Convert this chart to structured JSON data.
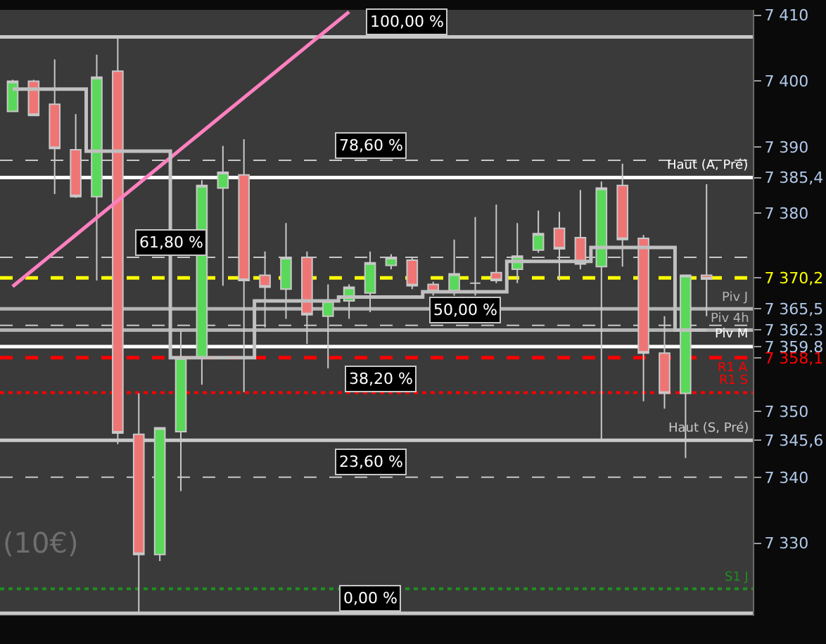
{
  "chart_data": {
    "type": "candlestick",
    "categories": [
      null,
      null,
      null,
      null,
      null,
      null,
      null,
      null,
      null,
      null,
      null,
      null,
      null,
      null,
      null,
      null,
      null,
      null,
      null,
      null,
      null,
      null,
      null,
      null,
      null,
      null,
      null,
      null,
      null,
      null,
      null,
      null,
      null,
      null
    ],
    "ohlc": [
      [
        7395.4,
        7400.2,
        7395.4,
        7400.0
      ],
      [
        7400.0,
        7400.2,
        7394.8,
        7394.8
      ],
      [
        7396.5,
        7403.3,
        7382.9,
        7389.8
      ],
      [
        7389.6,
        7395.0,
        7382.3,
        7382.5
      ],
      [
        7382.5,
        7404.0,
        7369.8,
        7400.6
      ],
      [
        7401.5,
        7406.7,
        7345.0,
        7346.7
      ],
      [
        7346.5,
        7352.7,
        7319.4,
        7328.3
      ],
      [
        7328.3,
        7347.5,
        7327.3,
        7347.5
      ],
      [
        7346.9,
        7362.1,
        7337.9,
        7358.1
      ],
      [
        7358.1,
        7385.0,
        7354.0,
        7384.2
      ],
      [
        7383.8,
        7390.2,
        7369.0,
        7386.2
      ],
      [
        7385.8,
        7391.2,
        7352.9,
        7369.8
      ],
      [
        7370.6,
        7374.2,
        7362.7,
        7368.8
      ],
      [
        7368.5,
        7378.5,
        7364.0,
        7373.3
      ],
      [
        7373.3,
        7374.2,
        7360.2,
        7364.6
      ],
      [
        7364.4,
        7369.2,
        7356.5,
        7366.7
      ],
      [
        7366.7,
        7369.2,
        7364.0,
        7368.8
      ],
      [
        7367.9,
        7374.2,
        7365.0,
        7372.5
      ],
      [
        7372.1,
        7373.8,
        7371.5,
        7373.3
      ],
      [
        7372.9,
        7373.3,
        7368.5,
        7369.0
      ],
      [
        7369.2,
        7369.6,
        7367.5,
        7368.1
      ],
      [
        7368.3,
        7376.0,
        7367.5,
        7370.8
      ],
      [
        7369.4,
        7379.4,
        7367.5,
        7369.4
      ],
      [
        7371.0,
        7381.3,
        7369.4,
        7369.8
      ],
      [
        7371.5,
        7378.5,
        7369.4,
        7373.5
      ],
      [
        7374.4,
        7380.4,
        7374.0,
        7376.9
      ],
      [
        7377.7,
        7380.2,
        7369.8,
        7374.6
      ],
      [
        7376.3,
        7383.5,
        7371.5,
        7372.3
      ],
      [
        7371.9,
        7384.8,
        7345.8,
        7383.8
      ],
      [
        7384.2,
        7387.5,
        7371.9,
        7376.0
      ],
      [
        7376.2,
        7376.7,
        7351.5,
        7358.8
      ],
      [
        7358.8,
        7364.4,
        7350.4,
        7352.7
      ],
      [
        7352.7,
        7370.6,
        7342.9,
        7370.6
      ],
      [
        7370.6,
        7384.4,
        7364.4,
        7370.0
      ]
    ],
    "colors": [
      "#5ad85a",
      "#ef7575",
      "#ef7575",
      "#ef7575",
      "#5ad85a",
      "#ef7575",
      "#ef7575",
      "#5ad85a",
      "#5ad85a",
      "#5ad85a",
      "#5ad85a",
      "#ef7575",
      "#ef7575",
      "#5ad85a",
      "#ef7575",
      "#5ad85a",
      "#5ad85a",
      "#5ad85a",
      "#5ad85a",
      "#ef7575",
      "#ef7575",
      "#5ad85a",
      "#c8c8c8",
      "#ef7575",
      "#5ad85a",
      "#5ad85a",
      "#ef7575",
      "#ef7575",
      "#5ad85a",
      "#ef7575",
      "#ef7575",
      "#ef7575",
      "#5ad85a",
      "#ef7575"
    ],
    "series": [
      {
        "type": "line",
        "color": "#ff80c0",
        "values": [
          7368.9,
          7371.5,
          7374.1,
          7376.7,
          7379.3,
          7381.9,
          7384.5,
          7387.1,
          7389.7,
          7392.3,
          7394.9,
          7397.5,
          7400.1,
          7402.7,
          7405.3,
          7407.9,
          7410.5,
          null,
          null,
          null,
          null,
          null,
          null,
          null,
          null,
          null,
          null,
          null,
          null,
          null,
          null,
          null,
          null,
          null
        ]
      },
      {
        "type": "step",
        "color": "#c0c0c0",
        "values": [
          7398.8,
          7398.8,
          7398.8,
          7398.8,
          7389.4,
          7389.4,
          7389.4,
          7389.4,
          7358.1,
          7358.1,
          7358.1,
          7358.1,
          7366.7,
          7366.7,
          7366.7,
          7366.7,
          7367.3,
          7367.3,
          7367.3,
          7367.3,
          7368.1,
          7368.1,
          7368.1,
          7368.1,
          7372.7,
          7372.7,
          7372.7,
          7372.7,
          7374.8,
          7374.8,
          7374.8,
          7374.8,
          7362.3,
          7362.3
        ]
      }
    ],
    "ylim": [
      7319.0,
      7410.8
    ],
    "yticks": [
      {
        "value": 7410,
        "label": "7 410"
      },
      {
        "value": 7400,
        "label": "7 400"
      },
      {
        "value": 7390,
        "label": "7 390"
      },
      {
        "value": 7385.4,
        "label": "7 385,4"
      },
      {
        "value": 7380,
        "label": "7 380"
      },
      {
        "value": 7370.2,
        "label": "7 370,2"
      },
      {
        "value": 7365.5,
        "label": "7 365,5"
      },
      {
        "value": 7362.3,
        "label": "7 362.3"
      },
      {
        "value": 7359.8,
        "label": "7 359.8"
      },
      {
        "value": 7358.1,
        "label": "7 358,1"
      },
      {
        "value": 7350,
        "label": "7 350"
      },
      {
        "value": 7345.6,
        "label": "7 345,6"
      },
      {
        "value": 7340,
        "label": "7 340"
      },
      {
        "value": 7330,
        "label": "7 330"
      }
    ],
    "tick_labels": "y",
    "ref_lines": [
      {
        "axis": "y",
        "value": 7406.7,
        "color": "#c8c8c8",
        "line_style": "solid"
      },
      {
        "axis": "y",
        "value": 7388.0,
        "color": "#c8c8c8",
        "line_style": "dashed"
      },
      {
        "axis": "y",
        "value": 7385.4,
        "label": "Haut (A, Pré)",
        "color": "#ffffff",
        "line_style": "solid"
      },
      {
        "axis": "y",
        "value": 7373.3,
        "color": "#c8c8c8",
        "line_style": "dashed"
      },
      {
        "axis": "y",
        "value": 7370.2,
        "color": "#ffff00",
        "line_style": "dashed"
      },
      {
        "axis": "y",
        "value": 7365.5,
        "label": "Piv J",
        "color": "#b4b4b4",
        "line_style": "solid"
      },
      {
        "axis": "y",
        "value": 7363.0,
        "color": "#c8c8c8",
        "line_style": "dashed"
      },
      {
        "axis": "y",
        "value": 7362.3,
        "label": "Piv 4h",
        "color": "#b4b4b4",
        "line_style": "solid"
      },
      {
        "axis": "y",
        "value": 7359.8,
        "label": "Piv M",
        "color": "#ffffff",
        "line_style": "solid"
      },
      {
        "axis": "y",
        "value": 7358.1,
        "label": "R1 A",
        "color": "#ff0000",
        "line_style": "dashed"
      },
      {
        "axis": "y",
        "value": 7352.8,
        "label": "R1 S",
        "color": "#ff0000",
        "line_style": "dotted"
      },
      {
        "axis": "y",
        "value": 7345.6,
        "label": "Haut (S, Pré)",
        "color": "#c8c8c8",
        "line_style": "solid"
      },
      {
        "axis": "y",
        "value": 7340.0,
        "color": "#c8c8c8",
        "line_style": "dashed"
      },
      {
        "axis": "y",
        "value": 7323.1,
        "label": "S1 J",
        "color": "#1f8f1f",
        "line_style": "dotted"
      },
      {
        "axis": "y",
        "value": 7319.4,
        "color": "#c8c8c8",
        "line_style": "solid"
      }
    ],
    "annotations": [
      {
        "text": "100,00 %",
        "y": 7406.7
      },
      {
        "text": "78,60 %",
        "y": 7388.0
      },
      {
        "text": "61,80 %",
        "y": 7373.3
      },
      {
        "text": "50,00 %",
        "y": 7363.0
      },
      {
        "text": "38,20 %",
        "y": 7352.75
      },
      {
        "text": "23,60 %",
        "y": 7340.0
      },
      {
        "text": "0,00 %",
        "y": 7319.4
      },
      "(10€)"
    ]
  }
}
